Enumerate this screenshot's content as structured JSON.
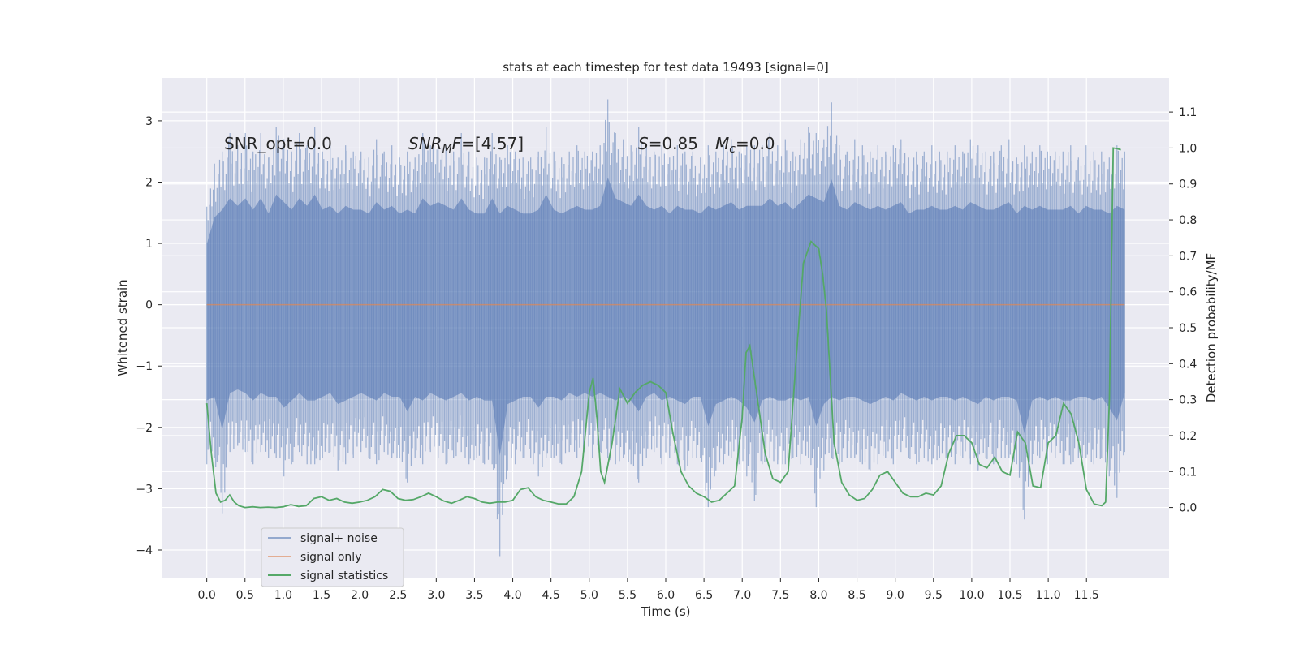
{
  "chart_data": {
    "type": "line",
    "title": "stats at each timestep for test data 19493 [signal=0]",
    "xlabel": "Time (s)",
    "ylabel": "Whitened strain",
    "ylabel_right": "Detection probability/MF",
    "xlim": [
      -0.58,
      12.58
    ],
    "ylim": [
      -4.45,
      3.7
    ],
    "ylim_right": [
      -0.195,
      1.195
    ],
    "x_ticks": [
      0.0,
      0.5,
      1.0,
      1.5,
      2.0,
      2.5,
      3.0,
      3.5,
      4.0,
      4.5,
      5.0,
      5.5,
      6.0,
      6.5,
      7.0,
      7.5,
      8.0,
      8.5,
      9.0,
      9.5,
      10.0,
      10.5,
      11.0,
      11.5
    ],
    "x_tick_labels": [
      "0.0",
      "0.5",
      "1.0",
      "1.5",
      "2.0",
      "2.5",
      "3.0",
      "3.5",
      "4.0",
      "4.5",
      "5.0",
      "5.5",
      "6.0",
      "6.5",
      "7.0",
      "7.5",
      "8.0",
      "8.5",
      "9.0",
      "9.5",
      "10.0",
      "10.5",
      "11.0",
      "11.5"
    ],
    "y_ticks": [
      -4,
      -3,
      -2,
      -1,
      0,
      1,
      2,
      3
    ],
    "y_tick_labels": [
      "−4",
      "−3",
      "−2",
      "−1",
      "0",
      "1",
      "2",
      "3"
    ],
    "y_right_ticks": [
      0.0,
      0.1,
      0.2,
      0.3,
      0.4,
      0.5,
      0.6,
      0.7,
      0.8,
      0.9,
      1.0,
      1.1
    ],
    "y_right_tick_labels": [
      "0.0",
      "0.1",
      "0.2",
      "0.3",
      "0.4",
      "0.5",
      "0.6",
      "0.7",
      "0.8",
      "0.9",
      "1.0",
      "1.1"
    ],
    "grid": true,
    "legend_position": "lower-left",
    "colors": {
      "noise": "#4c72b0",
      "signal": "#dd8452",
      "stats": "#55a868",
      "background": "#eaeaf2"
    },
    "series": [
      {
        "name": "signal+ noise",
        "axis": "left",
        "x_range": [
          0.0,
          12.0
        ],
        "envelope_upper": [
          1.6,
          2.3,
          2.5,
          2.8,
          2.6,
          2.8,
          2.5,
          2.8,
          2.4,
          2.9,
          2.7,
          2.5,
          2.8,
          2.6,
          2.9,
          2.5,
          2.6,
          2.4,
          2.6,
          2.5,
          2.5,
          2.4,
          2.7,
          2.5,
          2.6,
          2.4,
          2.5,
          2.4,
          2.8,
          2.6,
          2.7,
          2.6,
          2.5,
          2.8,
          2.5,
          2.4,
          2.4,
          2.8,
          2.4,
          2.6,
          2.5,
          2.4,
          2.4,
          2.5,
          2.9,
          2.5,
          2.4,
          2.5,
          2.6,
          2.5,
          2.5,
          2.6,
          3.35,
          2.8,
          2.7,
          2.6,
          2.9,
          2.6,
          2.5,
          2.6,
          2.4,
          2.6,
          2.5,
          2.5,
          2.4,
          2.6,
          2.5,
          2.6,
          2.7,
          2.5,
          2.6,
          2.6,
          2.6,
          2.8,
          2.6,
          2.7,
          2.5,
          2.7,
          2.9,
          2.8,
          2.7,
          3.3,
          2.6,
          2.5,
          2.7,
          2.6,
          2.5,
          2.6,
          2.5,
          2.6,
          2.7,
          2.4,
          2.5,
          2.5,
          2.6,
          2.5,
          2.5,
          2.6,
          2.5,
          2.7,
          2.6,
          2.5,
          2.5,
          2.6,
          2.7,
          2.4,
          2.6,
          2.5,
          2.6,
          2.5,
          2.5,
          2.5,
          2.6,
          2.4,
          2.6,
          2.5,
          2.5,
          2.4,
          2.6,
          2.5
        ],
        "envelope_lower": [
          -2.6,
          -2.5,
          -3.4,
          -2.4,
          -2.3,
          -2.4,
          -2.6,
          -2.4,
          -2.5,
          -2.5,
          -2.8,
          -2.6,
          -2.4,
          -2.6,
          -2.6,
          -2.5,
          -2.4,
          -2.7,
          -2.6,
          -2.5,
          -2.4,
          -2.5,
          -2.6,
          -2.4,
          -2.5,
          -2.5,
          -2.9,
          -2.5,
          -2.6,
          -2.4,
          -2.5,
          -2.6,
          -2.5,
          -2.4,
          -2.6,
          -2.5,
          -2.6,
          -2.6,
          -4.1,
          -2.7,
          -2.6,
          -2.5,
          -2.5,
          -2.8,
          -2.5,
          -2.5,
          -2.6,
          -2.4,
          -2.5,
          -2.4,
          -2.5,
          -2.4,
          -2.5,
          -2.6,
          -2.5,
          -2.6,
          -2.9,
          -2.5,
          -2.4,
          -2.6,
          -2.5,
          -2.6,
          -2.7,
          -2.5,
          -2.5,
          -3.3,
          -2.7,
          -2.6,
          -2.5,
          -2.6,
          -2.8,
          -3.2,
          -2.6,
          -2.5,
          -2.6,
          -2.6,
          -2.5,
          -2.6,
          -2.5,
          -3.3,
          -2.7,
          -2.5,
          -2.6,
          -2.5,
          -2.5,
          -2.6,
          -2.7,
          -2.6,
          -2.5,
          -2.6,
          -2.4,
          -2.5,
          -2.6,
          -2.5,
          -2.6,
          -2.5,
          -2.5,
          -2.6,
          -2.5,
          -2.6,
          -2.7,
          -2.5,
          -2.6,
          -2.5,
          -2.5,
          -2.6,
          -3.5,
          -2.6,
          -2.5,
          -2.6,
          -2.5,
          -2.6,
          -2.6,
          -2.5,
          -2.5,
          -2.6,
          -2.5,
          -2.8,
          -3.15,
          -2.4
        ]
      },
      {
        "name": "signal only",
        "axis": "left",
        "x": [
          0.0,
          12.0
        ],
        "values": [
          0.0,
          0.0
        ]
      },
      {
        "name": "signal statistics",
        "axis": "right",
        "x": [
          0.0,
          0.06,
          0.12,
          0.18,
          0.24,
          0.3,
          0.36,
          0.42,
          0.5,
          0.6,
          0.7,
          0.8,
          0.9,
          1.0,
          1.1,
          1.2,
          1.3,
          1.4,
          1.5,
          1.6,
          1.7,
          1.8,
          1.9,
          2.0,
          2.1,
          2.2,
          2.3,
          2.4,
          2.5,
          2.6,
          2.7,
          2.8,
          2.9,
          3.0,
          3.1,
          3.2,
          3.3,
          3.4,
          3.5,
          3.6,
          3.7,
          3.8,
          3.9,
          4.0,
          4.1,
          4.2,
          4.3,
          4.4,
          4.5,
          4.6,
          4.7,
          4.8,
          4.9,
          5.0,
          5.05,
          5.1,
          5.15,
          5.2,
          5.3,
          5.4,
          5.5,
          5.6,
          5.7,
          5.8,
          5.9,
          6.0,
          6.1,
          6.2,
          6.3,
          6.4,
          6.5,
          6.6,
          6.7,
          6.8,
          6.9,
          7.0,
          7.05,
          7.1,
          7.2,
          7.3,
          7.4,
          7.5,
          7.6,
          7.7,
          7.8,
          7.9,
          7.95,
          8.0,
          8.05,
          8.1,
          8.2,
          8.3,
          8.4,
          8.5,
          8.6,
          8.7,
          8.8,
          8.9,
          9.0,
          9.1,
          9.2,
          9.3,
          9.4,
          9.5,
          9.6,
          9.7,
          9.8,
          9.9,
          10.0,
          10.1,
          10.2,
          10.3,
          10.4,
          10.5,
          10.6,
          10.7,
          10.8,
          10.9,
          11.0,
          11.1,
          11.2,
          11.3,
          11.4,
          11.5,
          11.6,
          11.7,
          11.75,
          11.8,
          11.85,
          11.9,
          11.95
        ],
        "values": [
          0.29,
          0.15,
          0.04,
          0.015,
          0.02,
          0.035,
          0.015,
          0.005,
          0.0,
          0.002,
          0.0,
          0.001,
          0.0,
          0.002,
          0.008,
          0.003,
          0.005,
          0.025,
          0.03,
          0.02,
          0.025,
          0.015,
          0.012,
          0.015,
          0.02,
          0.03,
          0.05,
          0.045,
          0.025,
          0.02,
          0.022,
          0.03,
          0.04,
          0.03,
          0.018,
          0.012,
          0.02,
          0.03,
          0.025,
          0.015,
          0.012,
          0.015,
          0.015,
          0.02,
          0.05,
          0.055,
          0.03,
          0.02,
          0.015,
          0.01,
          0.01,
          0.03,
          0.1,
          0.32,
          0.36,
          0.25,
          0.1,
          0.07,
          0.18,
          0.33,
          0.29,
          0.32,
          0.34,
          0.35,
          0.34,
          0.32,
          0.2,
          0.1,
          0.06,
          0.04,
          0.03,
          0.015,
          0.02,
          0.04,
          0.06,
          0.25,
          0.43,
          0.45,
          0.3,
          0.15,
          0.08,
          0.07,
          0.1,
          0.4,
          0.68,
          0.74,
          0.73,
          0.72,
          0.65,
          0.55,
          0.18,
          0.07,
          0.035,
          0.02,
          0.025,
          0.05,
          0.09,
          0.1,
          0.07,
          0.04,
          0.03,
          0.03,
          0.04,
          0.035,
          0.06,
          0.15,
          0.2,
          0.2,
          0.18,
          0.12,
          0.11,
          0.14,
          0.1,
          0.09,
          0.21,
          0.18,
          0.06,
          0.055,
          0.18,
          0.2,
          0.29,
          0.26,
          0.18,
          0.05,
          0.01,
          0.005,
          0.015,
          0.3,
          1.0,
          0.998,
          0.995
        ]
      }
    ],
    "annotations": [
      {
        "id": "snr_opt",
        "text": "SNR_opt=0.0"
      },
      {
        "id": "snr_mf",
        "base": "SNR",
        "sub": "M",
        "rest": "F=[4.57]"
      },
      {
        "id": "s_stat",
        "base": "S",
        "rest": "=0.85"
      },
      {
        "id": "mc",
        "base": "M",
        "sub": "c",
        "rest": "=0.0"
      }
    ]
  }
}
